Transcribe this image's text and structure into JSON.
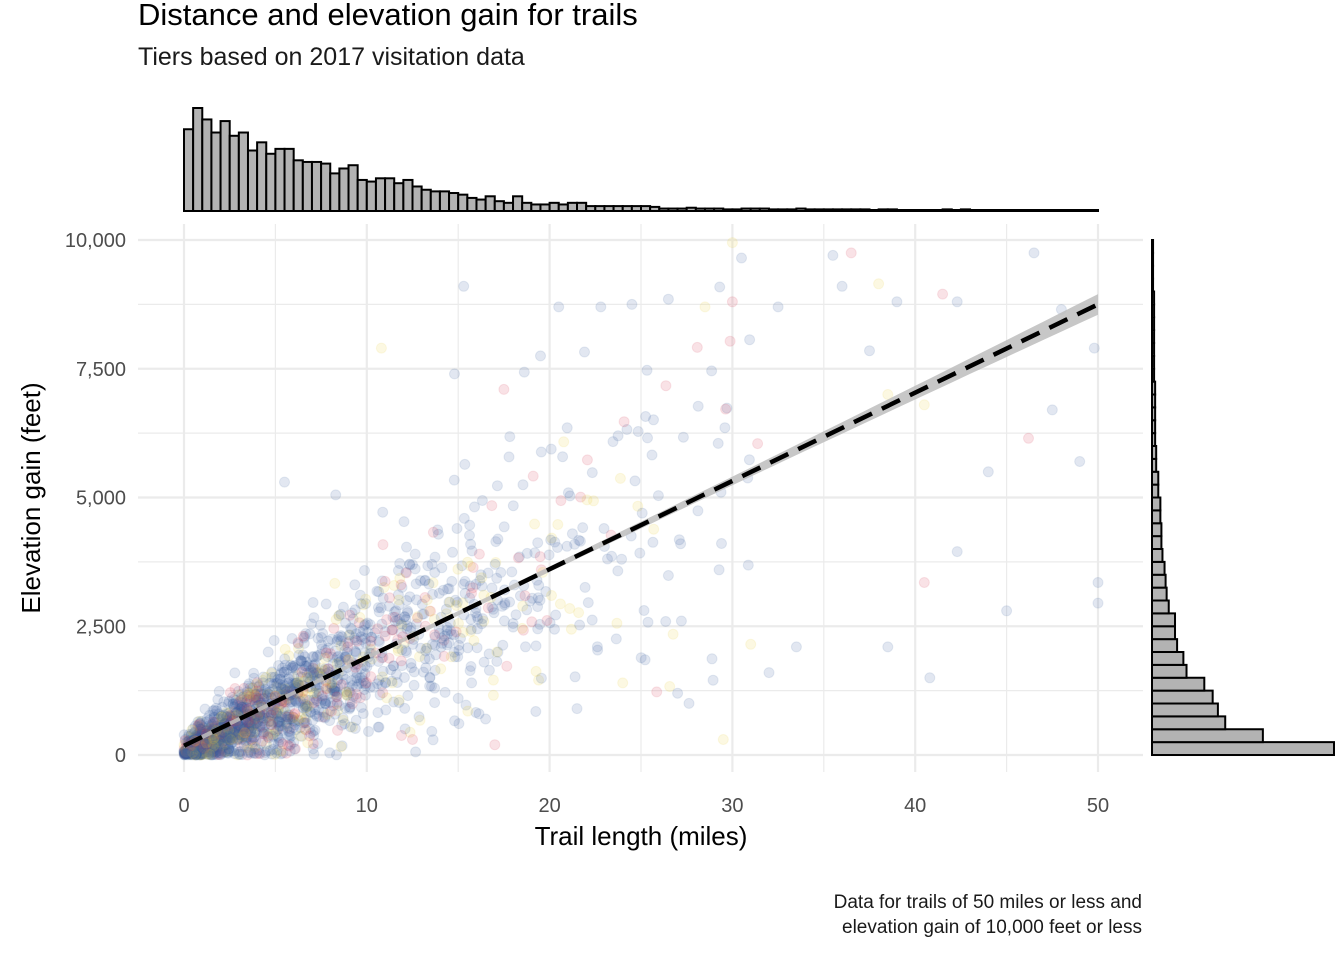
{
  "title": "Distance and elevation gain for trails",
  "subtitle": "Tiers based on 2017 visitation data",
  "caption": {
    "line1": "Data for trails of 50 miles or less and",
    "line2": "elevation gain of 10,000 feet or less"
  },
  "colors": {
    "points": [
      "#3a5f9e",
      "#e8cf3a",
      "#d63d56"
    ],
    "trend_line": "#000000",
    "trend_band": "#bdbdbd",
    "histogram_fill": "#b3b3b3",
    "histogram_stroke": "#000000",
    "grid": "#ebebeb"
  },
  "chart_data": {
    "type": "scatter",
    "xlabel": "Trail length (miles)",
    "ylabel": "Elevation gain (feet)",
    "xlim": [
      0,
      50
    ],
    "ylim": [
      0,
      10000
    ],
    "x_ticks": [
      0,
      10,
      20,
      30,
      40,
      50
    ],
    "x_tick_labels": [
      "0",
      "10",
      "20",
      "30",
      "40",
      "50"
    ],
    "y_ticks": [
      0,
      2500,
      5000,
      7500,
      10000
    ],
    "y_tick_labels": [
      "0",
      "2,500",
      "5,000",
      "7,500",
      "10,000"
    ],
    "grid": true,
    "point_alpha": 0.15,
    "trend": {
      "type": "linear",
      "from": [
        0,
        180
      ],
      "to": [
        50,
        8750
      ],
      "style": "dashed",
      "band": "confidence"
    },
    "sample_points": [
      [
        10.8,
        7900
      ],
      [
        15.3,
        9100
      ],
      [
        20.5,
        8700
      ],
      [
        22.8,
        8700
      ],
      [
        24.5,
        8750
      ],
      [
        26.5,
        8850
      ],
      [
        28.5,
        8700
      ],
      [
        30.0,
        8800
      ],
      [
        32.5,
        8700
      ],
      [
        35.5,
        9700
      ],
      [
        36.5,
        9750
      ],
      [
        38.0,
        9150
      ],
      [
        39.0,
        8800
      ],
      [
        41.5,
        8950
      ],
      [
        46.5,
        9750
      ],
      [
        48.0,
        8650
      ],
      [
        30.0,
        9950
      ],
      [
        30.5,
        9650
      ],
      [
        36.0,
        9100
      ],
      [
        42.3,
        8800
      ],
      [
        44.0,
        5500
      ],
      [
        46.2,
        6150
      ],
      [
        47.5,
        6700
      ],
      [
        49.0,
        5700
      ],
      [
        49.8,
        7900
      ],
      [
        50.0,
        3350
      ],
      [
        50.0,
        2950
      ],
      [
        40.5,
        3350
      ],
      [
        40.8,
        1500
      ],
      [
        38.5,
        2100
      ],
      [
        33.5,
        2100
      ],
      [
        32.0,
        1600
      ],
      [
        31.0,
        2150
      ],
      [
        29.5,
        300
      ],
      [
        27.0,
        1200
      ],
      [
        24.0,
        1400
      ],
      [
        21.5,
        900
      ],
      [
        16.5,
        700
      ],
      [
        15.0,
        1100
      ],
      [
        8.5,
        1800
      ],
      [
        5.5,
        5300
      ],
      [
        8.3,
        5050
      ],
      [
        14.8,
        7400
      ],
      [
        17.5,
        7100
      ],
      [
        19.5,
        7750
      ],
      [
        37.5,
        7850
      ],
      [
        38.5,
        7000
      ],
      [
        40.5,
        6800
      ],
      [
        42.3,
        3950
      ],
      [
        45.0,
        2800
      ],
      [
        12.5,
        300
      ],
      [
        17.0,
        200
      ],
      [
        5.8,
        700
      ]
    ],
    "top_histogram": {
      "x_range": [
        0,
        50
      ],
      "bin_width": 0.5,
      "counts": [
        100,
        126,
        112,
        96,
        110,
        92,
        96,
        74,
        84,
        70,
        76,
        76,
        62,
        60,
        60,
        58,
        46,
        52,
        56,
        38,
        36,
        40,
        40,
        34,
        38,
        30,
        26,
        24,
        24,
        22,
        20,
        16,
        14,
        18,
        12,
        10,
        18,
        10,
        8,
        8,
        10,
        8,
        10,
        10,
        6,
        6,
        6,
        6,
        6,
        6,
        6,
        5,
        3,
        3,
        3,
        4,
        3,
        3,
        3,
        2,
        2,
        3,
        3,
        3,
        2,
        2,
        2,
        3,
        2,
        2,
        2,
        2,
        2,
        2,
        2,
        1,
        2,
        2,
        1,
        1,
        1,
        1,
        1,
        2,
        1,
        2,
        1,
        1,
        1,
        1,
        1,
        1,
        1,
        1,
        1,
        1,
        1,
        1,
        1,
        1
      ]
    },
    "right_histogram": {
      "y_range": [
        0,
        10000
      ],
      "bin_width": 250,
      "counts": [
        174,
        106,
        70,
        63,
        58,
        50,
        33,
        30,
        24,
        22,
        22,
        16,
        14,
        13,
        12,
        10,
        9,
        9,
        8,
        8,
        6,
        6,
        4,
        4,
        3,
        3,
        3,
        3,
        3,
        2,
        2,
        2,
        2,
        2,
        2,
        2,
        1,
        1,
        1,
        1
      ]
    }
  }
}
